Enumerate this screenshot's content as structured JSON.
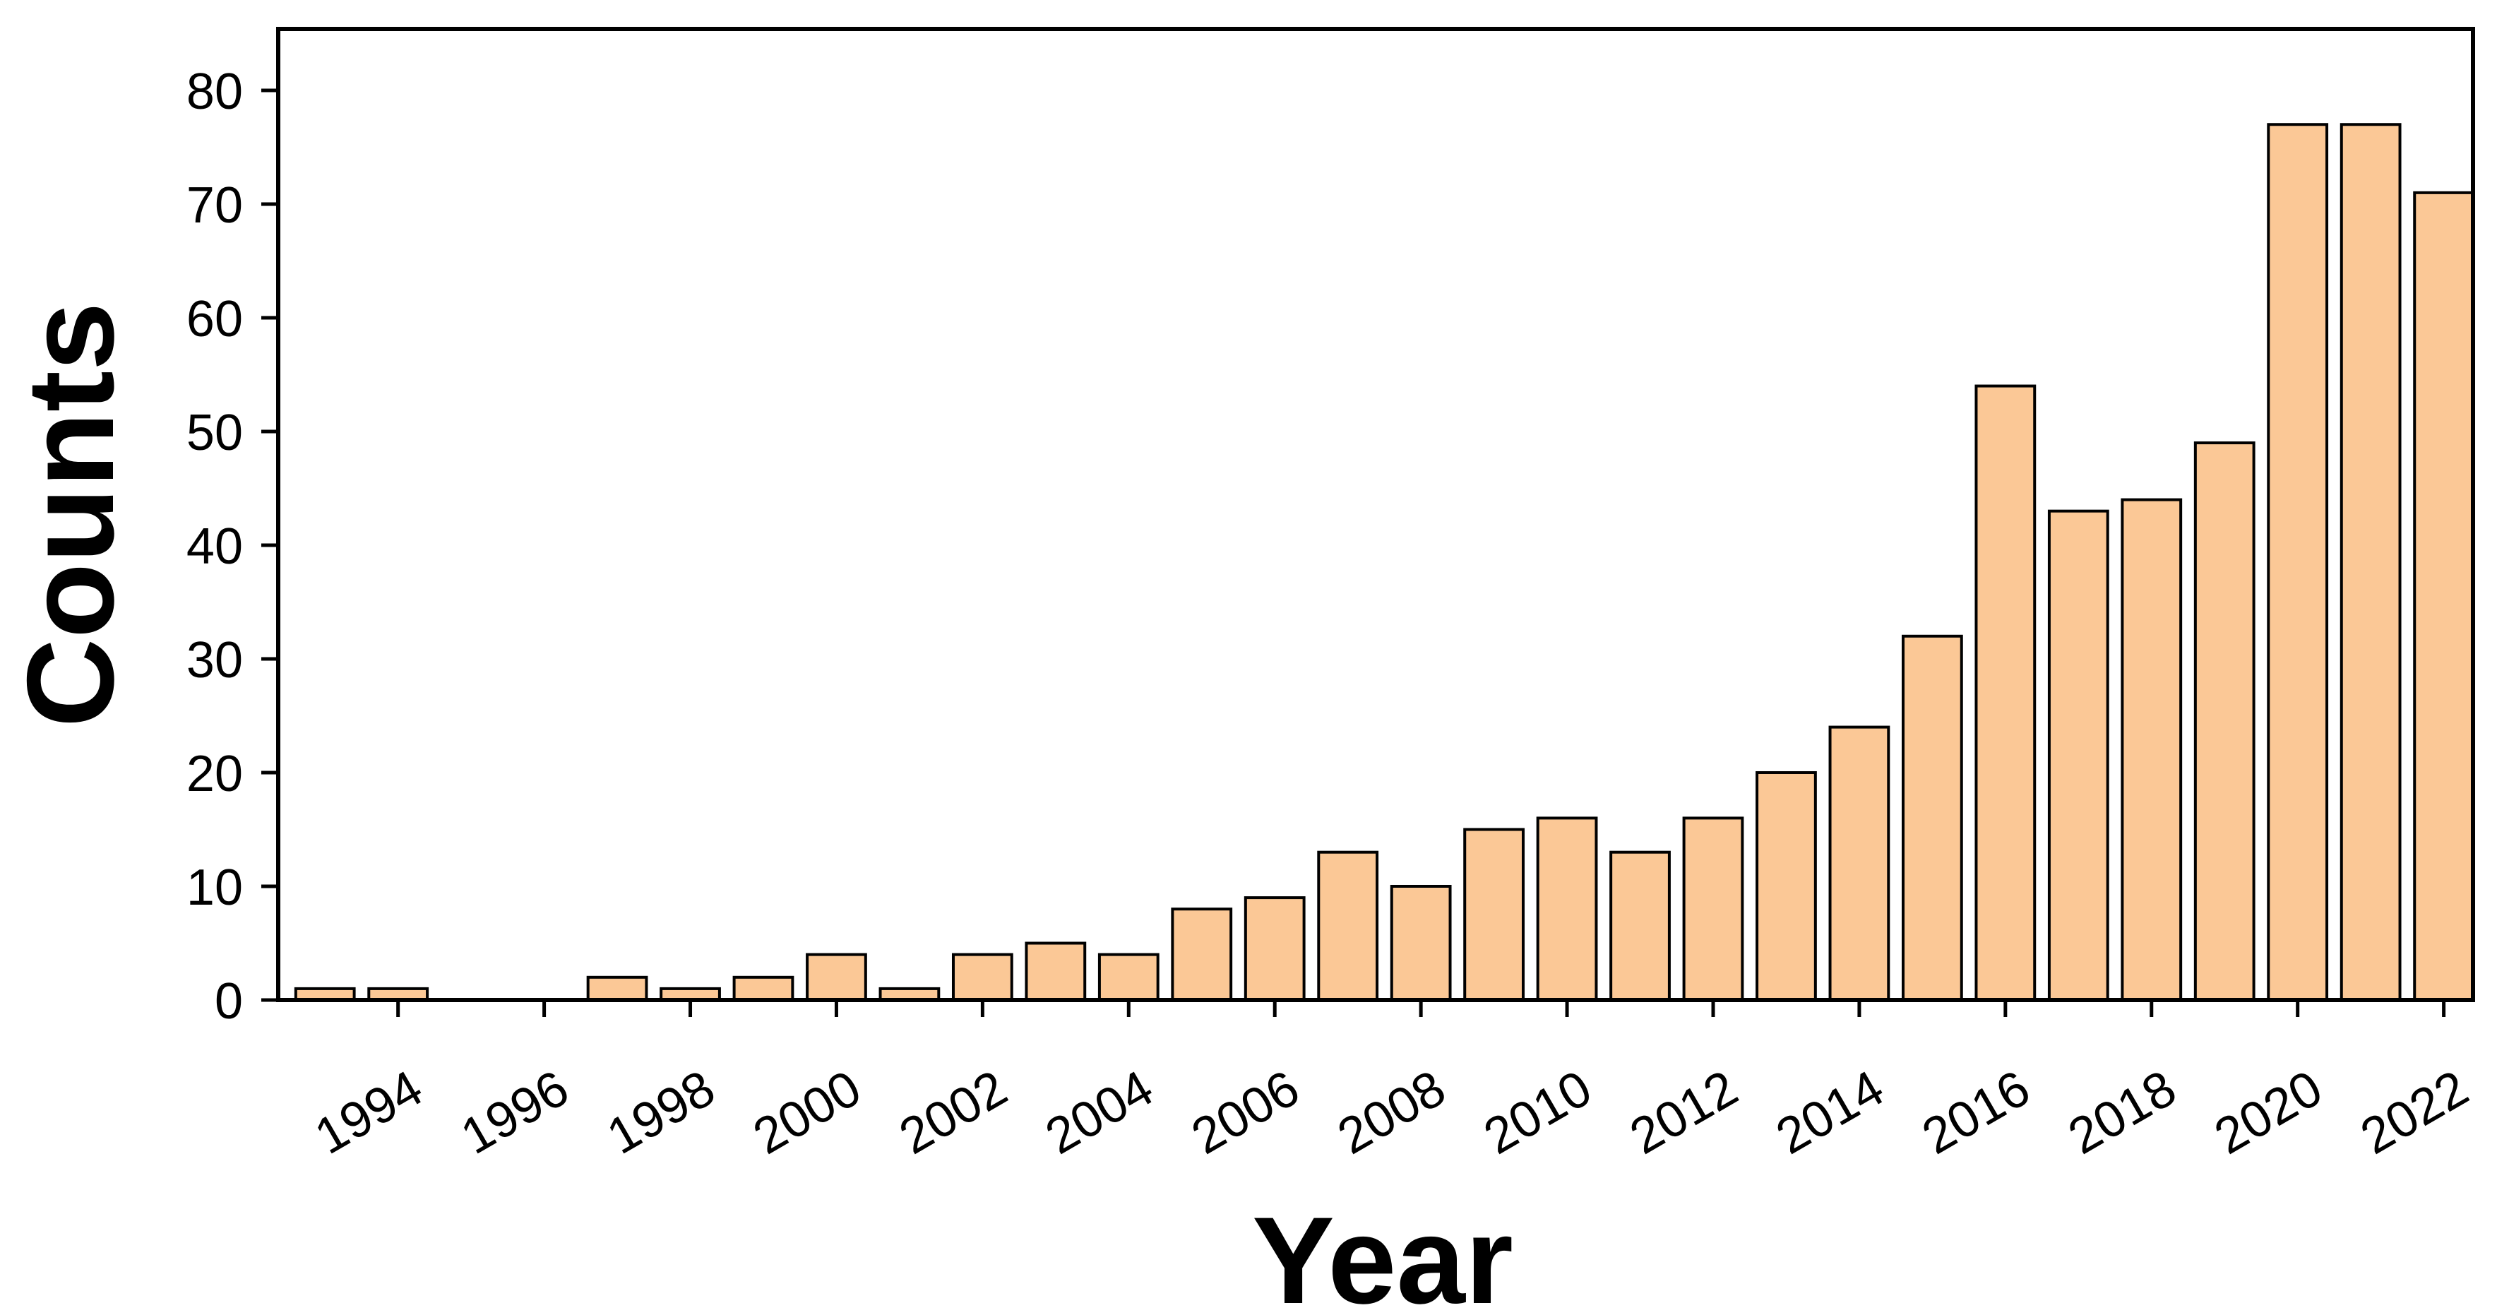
{
  "chart_data": {
    "type": "bar",
    "x_label": "Year",
    "y_label": "Counts",
    "x": [
      1993,
      1994,
      1995,
      1996,
      1997,
      1998,
      1999,
      2000,
      2001,
      2002,
      2003,
      2004,
      2005,
      2006,
      2007,
      2008,
      2009,
      2010,
      2011,
      2012,
      2013,
      2014,
      2015,
      2016,
      2017,
      2018,
      2019,
      2020,
      2021,
      2022
    ],
    "values": [
      1,
      1,
      0,
      0,
      2,
      1,
      2,
      4,
      1,
      4,
      5,
      4,
      8,
      9,
      13,
      10,
      15,
      16,
      13,
      16,
      20,
      24,
      32,
      54,
      43,
      44,
      49,
      77,
      77,
      71
    ],
    "color": "#fbc896",
    "xlim": [
      1992.36,
      2022.4
    ],
    "xticks": [
      1994,
      1996,
      1998,
      2000,
      2002,
      2004,
      2006,
      2008,
      2010,
      2012,
      2014,
      2016,
      2018,
      2020,
      2022
    ],
    "ylim": [
      0,
      85.4
    ],
    "yticks": [
      0,
      10,
      20,
      30,
      40,
      50,
      60,
      70,
      80
    ]
  }
}
